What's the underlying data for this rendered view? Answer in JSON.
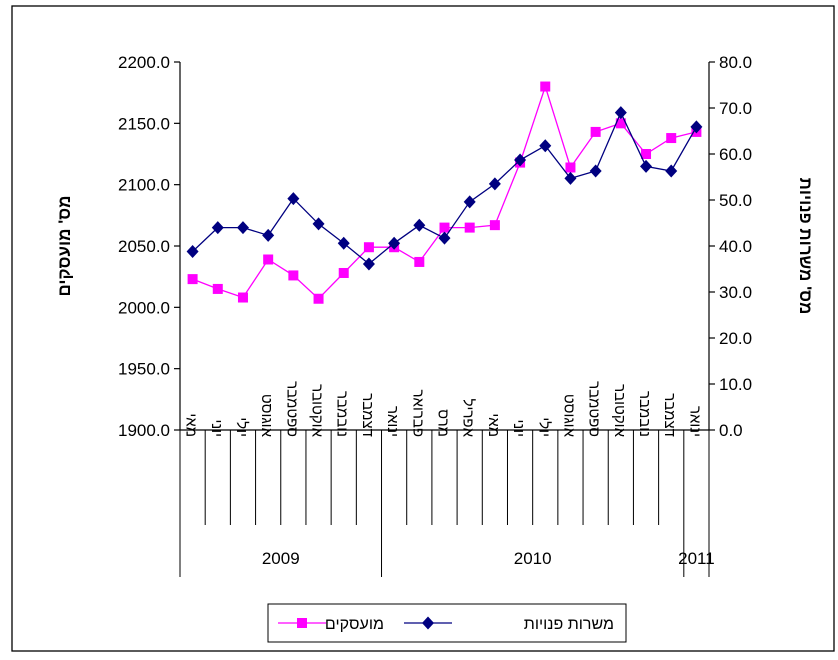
{
  "chart_data": {
    "type": "line",
    "title": "",
    "ylabel_left": "מס' מועסקים",
    "ylabel_right": "מס' משרות פנויות",
    "y_left": {
      "min": 1900,
      "max": 2200,
      "step": 50,
      "tick_labels": [
        "1900.0",
        "1950.0",
        "2000.0",
        "2050.0",
        "2100.0",
        "2150.0",
        "2200.0"
      ]
    },
    "y_right": {
      "min": 0,
      "max": 80,
      "step": 10,
      "tick_labels": [
        "0.0",
        "10.0",
        "20.0",
        "30.0",
        "40.0",
        "50.0",
        "60.0",
        "70.0",
        "80.0"
      ]
    },
    "categories": [
      "מאי",
      "יוני",
      "יולי",
      "אוגוסט",
      "ספטמבר",
      "אוקטובר",
      "נובמבר",
      "דצמבר",
      "ינואר",
      "פברואר",
      "מרס",
      "אפריל",
      "מאי",
      "יוני",
      "יולי",
      "אוגוסט",
      "ספטמבר",
      "אוקטובר",
      "נובמבר",
      "דצמבר",
      "ינואר"
    ],
    "years": [
      {
        "label": "2009",
        "from": 0,
        "to": 7
      },
      {
        "label": "2010",
        "from": 8,
        "to": 19
      },
      {
        "label": "2011",
        "from": 20,
        "to": 20
      }
    ],
    "series": [
      {
        "name": "מועסקים",
        "axis": "left",
        "color": "#ff00ff",
        "marker": "square",
        "values": [
          2023,
          2015,
          2008,
          2039,
          2026,
          2007,
          2028,
          2049,
          2049,
          2037,
          2065,
          2065,
          2067,
          2118,
          2180,
          2114,
          2143,
          2150,
          2125,
          2138,
          2143
        ]
      },
      {
        "name": "משרות פנויות",
        "axis": "right",
        "color": "#000080",
        "marker": "diamond",
        "values": [
          38.8,
          44.0,
          44.0,
          42.3,
          50.3,
          44.8,
          40.6,
          36.1,
          40.6,
          44.5,
          41.7,
          49.6,
          53.5,
          58.7,
          61.8,
          54.7,
          56.3,
          69.0,
          57.3,
          56.3,
          65.9
        ]
      }
    ],
    "legend_position": "bottom",
    "grid": false
  }
}
